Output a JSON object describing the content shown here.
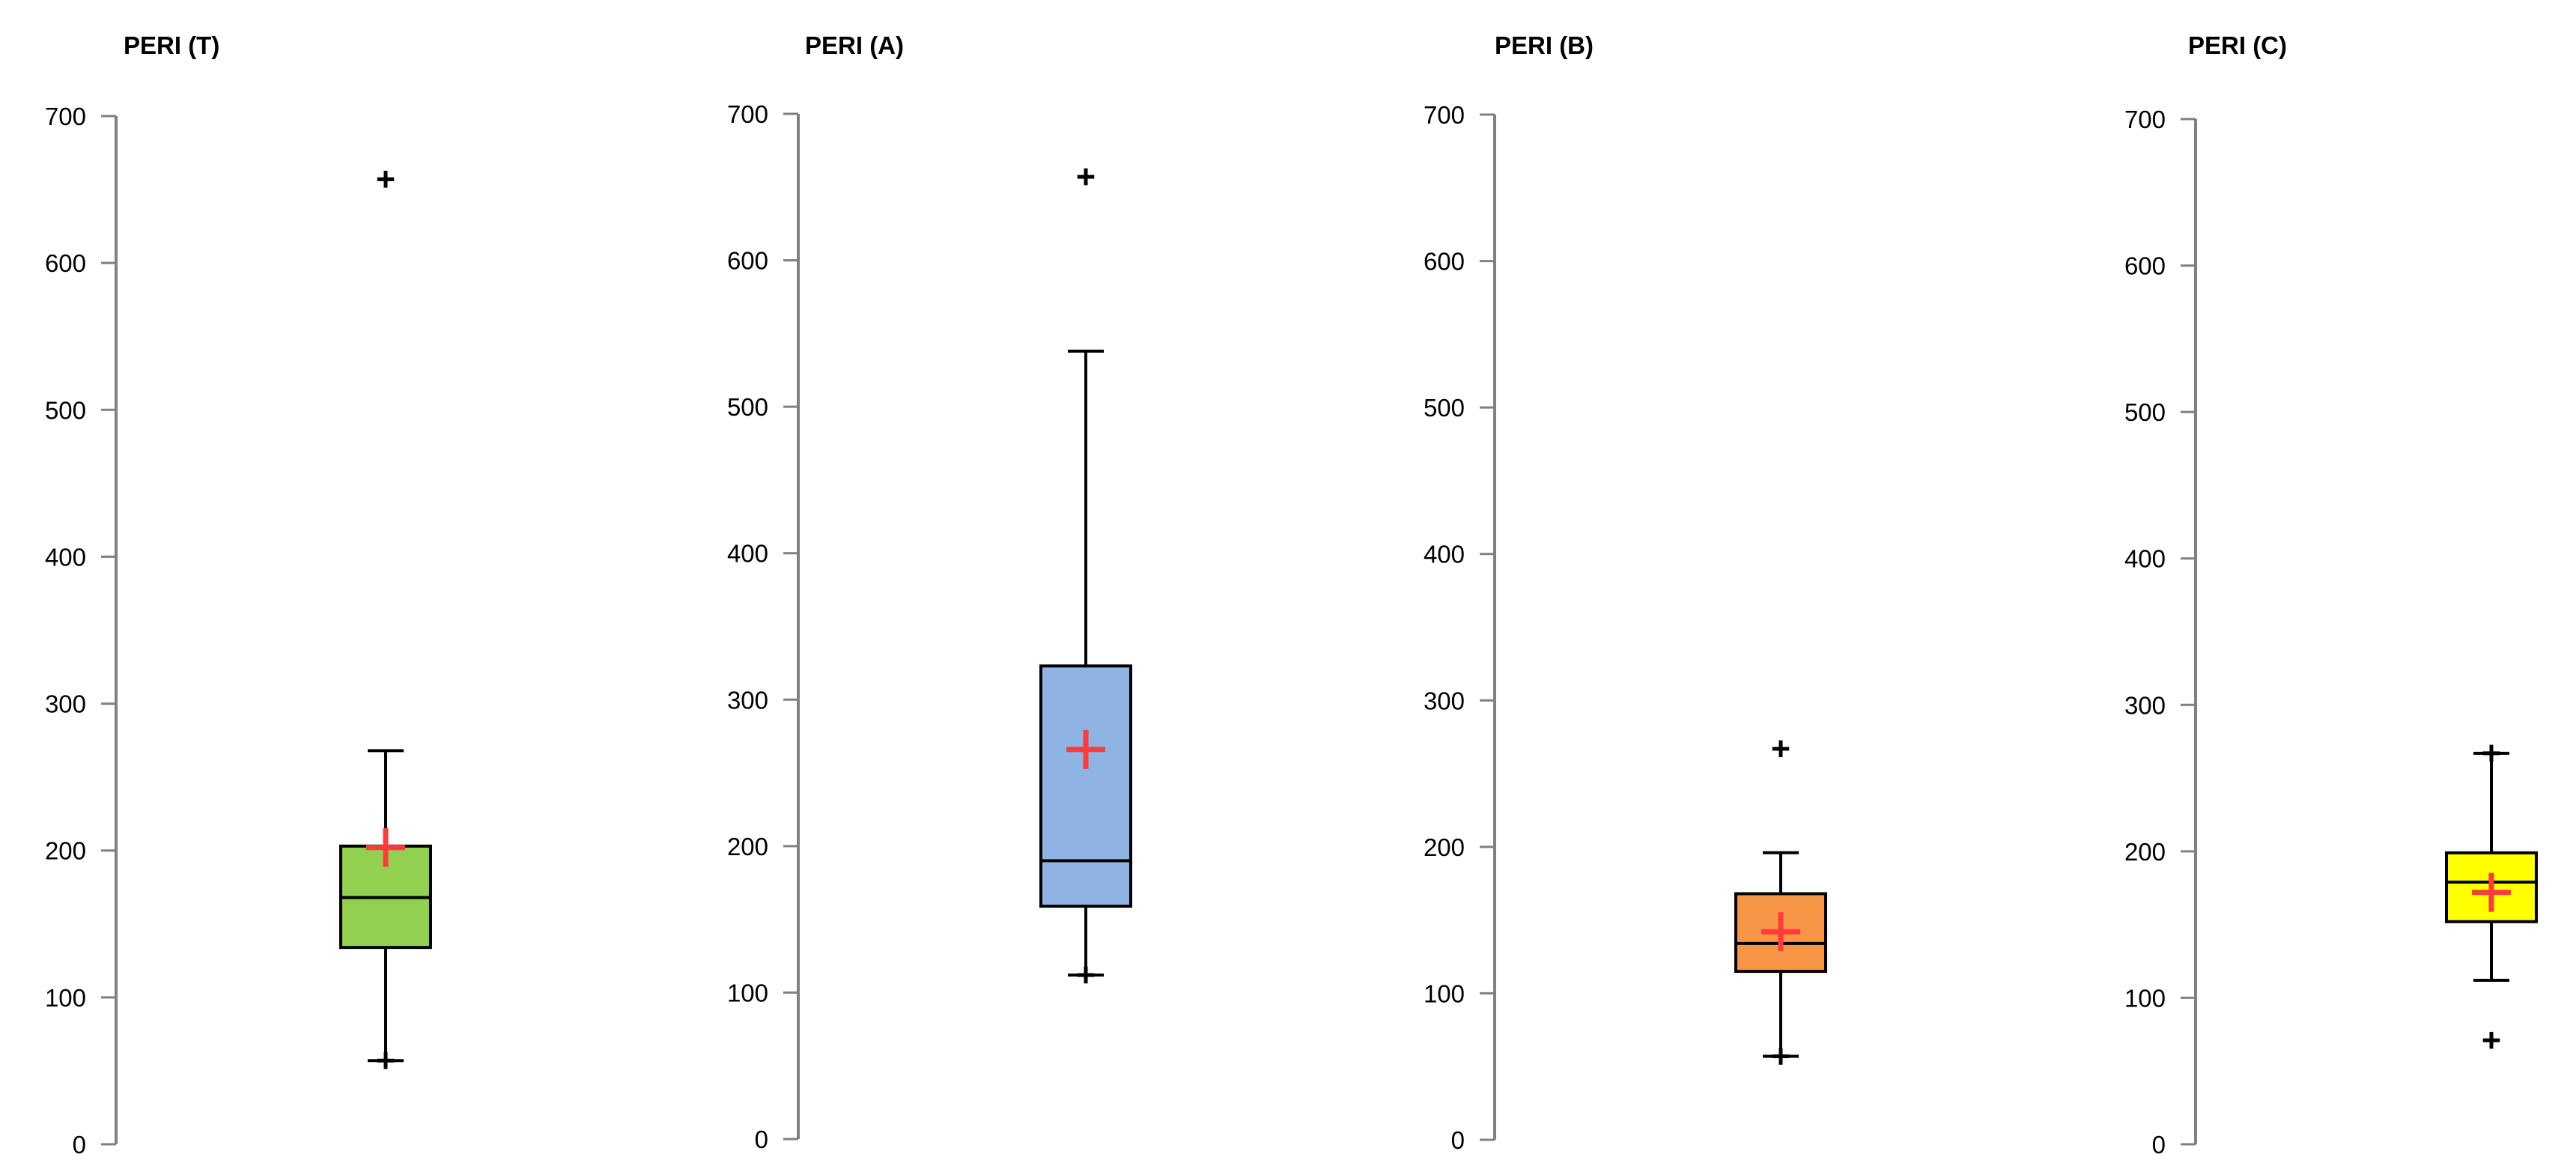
{
  "chart_data": [
    {
      "type": "box",
      "title": "PERI (T)",
      "ylim": [
        0,
        700
      ],
      "yticks": [
        "0",
        "100",
        "200",
        "300",
        "400",
        "500",
        "600",
        "700"
      ],
      "box": {
        "whisker_low": 57,
        "q1": 134,
        "median": 168,
        "q3": 203,
        "whisker_high": 268,
        "mean": 202
      },
      "outliers": [
        657,
        57
      ],
      "fill": "#92d050"
    },
    {
      "type": "box",
      "title": "PERI (A)",
      "ylim": [
        0,
        700
      ],
      "yticks": [
        "0",
        "100",
        "200",
        "300",
        "400",
        "500",
        "600",
        "700"
      ],
      "box": {
        "whisker_low": 112,
        "q1": 159,
        "median": 190,
        "q3": 323,
        "whisker_high": 538,
        "mean": 266
      },
      "outliers": [
        657,
        112
      ],
      "fill": "#8db4e2"
    },
    {
      "type": "box",
      "title": "PERI (B)",
      "ylim": [
        0,
        700
      ],
      "yticks": [
        "0",
        "100",
        "200",
        "300",
        "400",
        "500",
        "600",
        "700"
      ],
      "box": {
        "whisker_low": 57,
        "q1": 115,
        "median": 134,
        "q3": 168,
        "whisker_high": 196,
        "mean": 142
      },
      "outliers": [
        267,
        57
      ],
      "fill": "#f79646"
    },
    {
      "type": "box",
      "title": "PERI (C)",
      "ylim": [
        0,
        700
      ],
      "yticks": [
        "0",
        "100",
        "200",
        "300",
        "400",
        "500",
        "600",
        "700"
      ],
      "box": {
        "whisker_low": 112,
        "q1": 152,
        "median": 179,
        "q3": 199,
        "whisker_high": 267,
        "mean": 172
      },
      "outliers": [
        267,
        71
      ],
      "fill": "#ffff00"
    }
  ],
  "colors": {
    "axis": "#808080",
    "outline": "#000000",
    "mean_marker": "#ff3b3b",
    "outlier_marker": "#000000"
  }
}
